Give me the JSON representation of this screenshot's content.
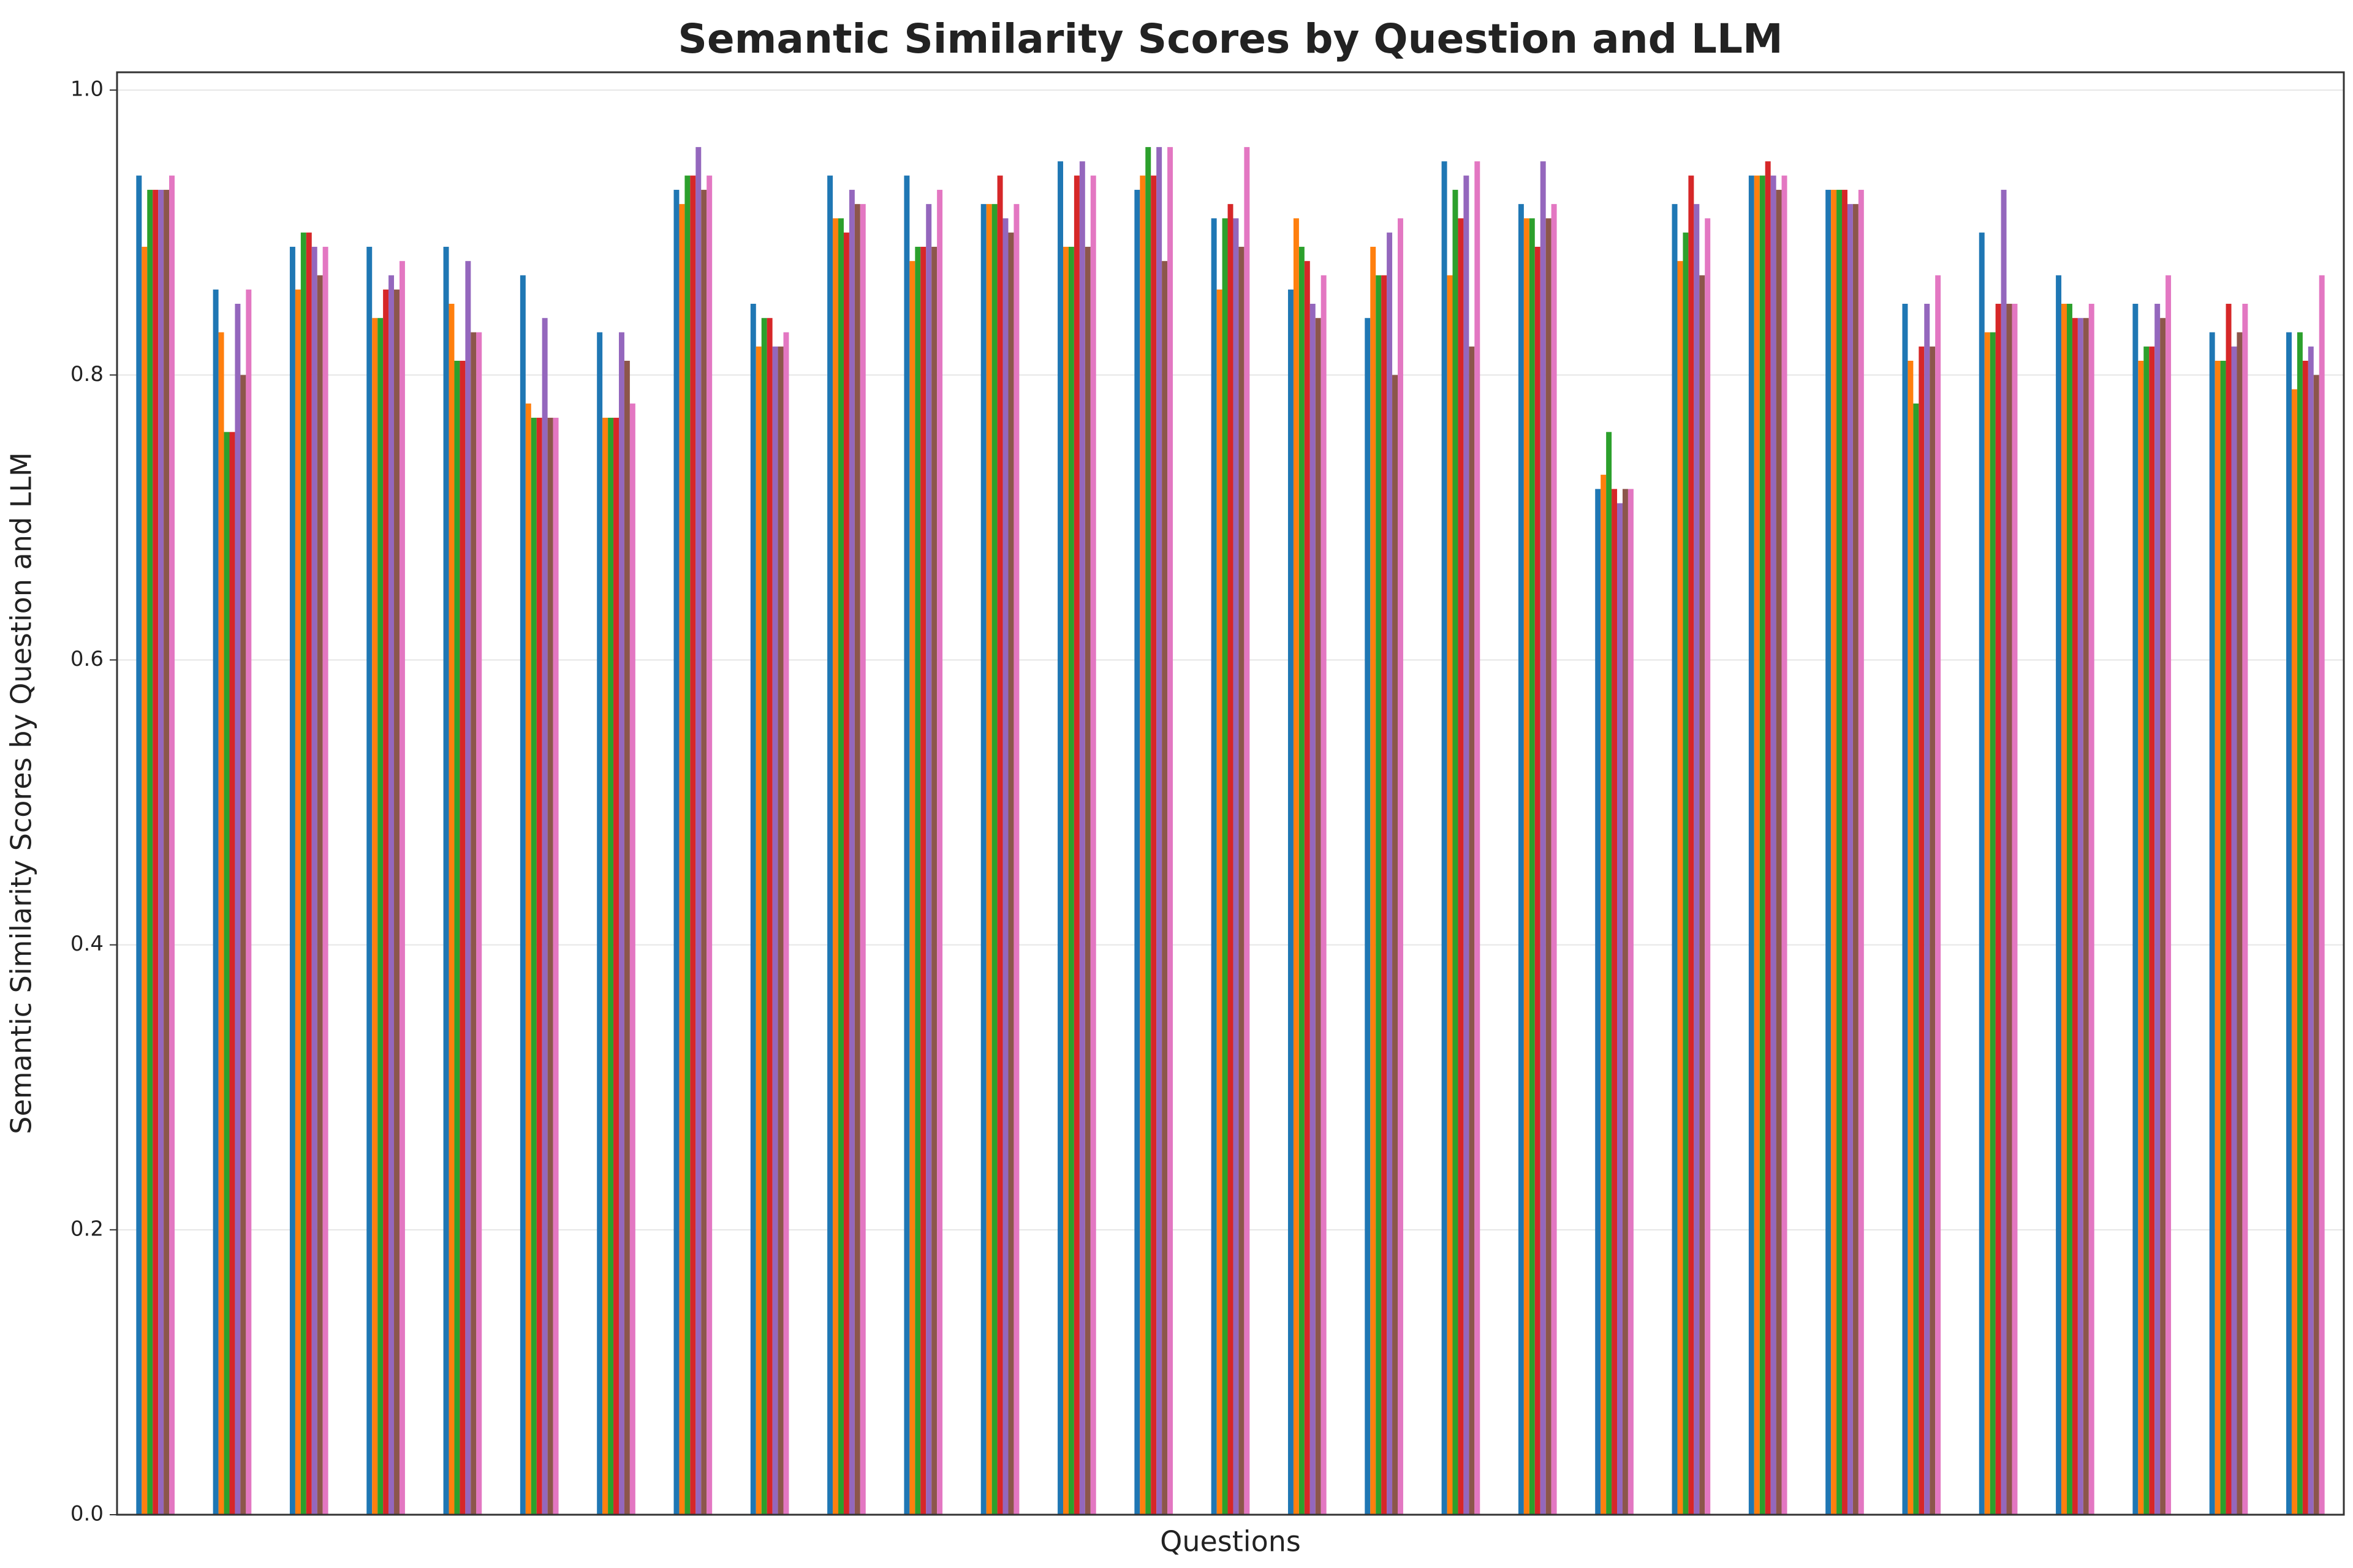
{
  "chart_data": {
    "type": "bar",
    "title": "Semantic Similarity Scores by Question and LLM",
    "xlabel": "Questions",
    "ylabel": "Semantic Similarity Scores by Question and LLM",
    "categories": [
      null,
      null,
      null,
      null,
      null,
      null,
      null,
      null,
      null,
      null,
      null,
      null,
      null,
      null,
      null,
      null,
      null,
      null,
      null,
      null,
      null,
      null,
      null,
      null,
      null,
      null,
      null,
      null,
      null
    ],
    "series": [
      {
        "color": "#1f77b4",
        "values": [
          0.94,
          0.86,
          0.89,
          0.89,
          0.89,
          0.87,
          0.83,
          0.93,
          0.85,
          0.94,
          0.94,
          0.92,
          0.95,
          0.93,
          0.91,
          0.86,
          0.84,
          0.95,
          0.92,
          0.72,
          0.92,
          0.94,
          0.93,
          0.85,
          0.9,
          0.87,
          0.85,
          0.83,
          0.83
        ]
      },
      {
        "color": "#ff7f0e",
        "values": [
          0.89,
          0.83,
          0.86,
          0.84,
          0.85,
          0.78,
          0.77,
          0.92,
          0.82,
          0.91,
          0.88,
          0.92,
          0.89,
          0.94,
          0.86,
          0.91,
          0.89,
          0.87,
          0.91,
          0.73,
          0.88,
          0.94,
          0.93,
          0.81,
          0.83,
          0.85,
          0.81,
          0.81,
          0.79
        ]
      },
      {
        "color": "#2ca02c",
        "values": [
          0.93,
          0.76,
          0.9,
          0.84,
          0.81,
          0.77,
          0.77,
          0.94,
          0.84,
          0.91,
          0.89,
          0.92,
          0.89,
          0.96,
          0.91,
          0.89,
          0.87,
          0.93,
          0.91,
          0.76,
          0.9,
          0.94,
          0.93,
          0.78,
          0.83,
          0.85,
          0.82,
          0.81,
          0.83
        ]
      },
      {
        "color": "#d62728",
        "values": [
          0.93,
          0.76,
          0.9,
          0.86,
          0.81,
          0.77,
          0.77,
          0.94,
          0.84,
          0.9,
          0.89,
          0.94,
          0.94,
          0.94,
          0.92,
          0.88,
          0.87,
          0.91,
          0.89,
          0.72,
          0.94,
          0.95,
          0.93,
          0.82,
          0.85,
          0.84,
          0.82,
          0.85,
          0.81
        ]
      },
      {
        "color": "#9467bd",
        "values": [
          0.93,
          0.85,
          0.89,
          0.87,
          0.88,
          0.84,
          0.83,
          0.96,
          0.82,
          0.93,
          0.92,
          0.91,
          0.95,
          0.96,
          0.91,
          0.85,
          0.9,
          0.94,
          0.95,
          0.71,
          0.92,
          0.94,
          0.92,
          0.85,
          0.93,
          0.84,
          0.85,
          0.82,
          0.82
        ]
      },
      {
        "color": "#8c564b",
        "values": [
          0.93,
          0.8,
          0.87,
          0.86,
          0.83,
          0.77,
          0.81,
          0.93,
          0.82,
          0.92,
          0.89,
          0.9,
          0.89,
          0.88,
          0.89,
          0.84,
          0.8,
          0.82,
          0.91,
          0.72,
          0.87,
          0.93,
          0.92,
          0.82,
          0.85,
          0.84,
          0.84,
          0.83,
          0.8
        ]
      },
      {
        "color": "#e377c2",
        "values": [
          0.94,
          0.86,
          0.89,
          0.88,
          0.83,
          0.77,
          0.78,
          0.94,
          0.83,
          0.92,
          0.93,
          0.92,
          0.94,
          0.96,
          0.96,
          0.87,
          0.91,
          0.95,
          0.92,
          0.72,
          0.91,
          0.94,
          0.93,
          0.87,
          0.85,
          0.85,
          0.87,
          0.85,
          0.87
        ]
      }
    ],
    "ylim": [
      0,
      1.0125
    ],
    "yticks": [
      {
        "value": 0,
        "label": "0.0"
      },
      0.2,
      0.4,
      0.6,
      0.8,
      {
        "value": 1,
        "label": "1.0"
      }
    ],
    "grid": true
  }
}
